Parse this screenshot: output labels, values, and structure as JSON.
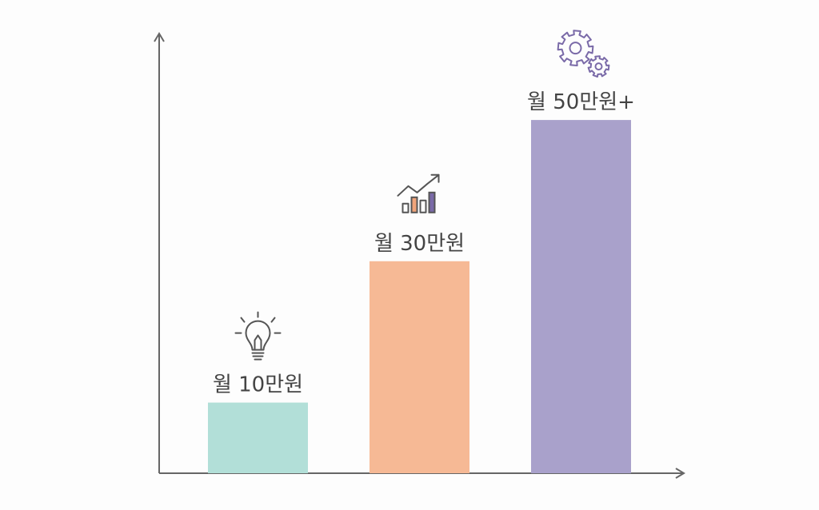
{
  "chart_data": {
    "type": "bar",
    "categories": [
      "월 10만원",
      "월 30만원",
      "월 50만원+"
    ],
    "values": [
      10,
      30,
      50
    ],
    "title": "",
    "xlabel": "",
    "ylabel": "",
    "ylim": [
      0,
      62
    ],
    "grid": false,
    "legend": "none",
    "colors": [
      "#b2dfd8",
      "#f6b995",
      "#a9a1cb"
    ],
    "icons": [
      "lightbulb-icon",
      "growth-chart-icon",
      "gears-icon"
    ],
    "icon_colors": {
      "line": "#555555",
      "accent_purple": "#7a6aa8",
      "accent_orange": "#f0a47a"
    },
    "axis_color": "#666666"
  }
}
